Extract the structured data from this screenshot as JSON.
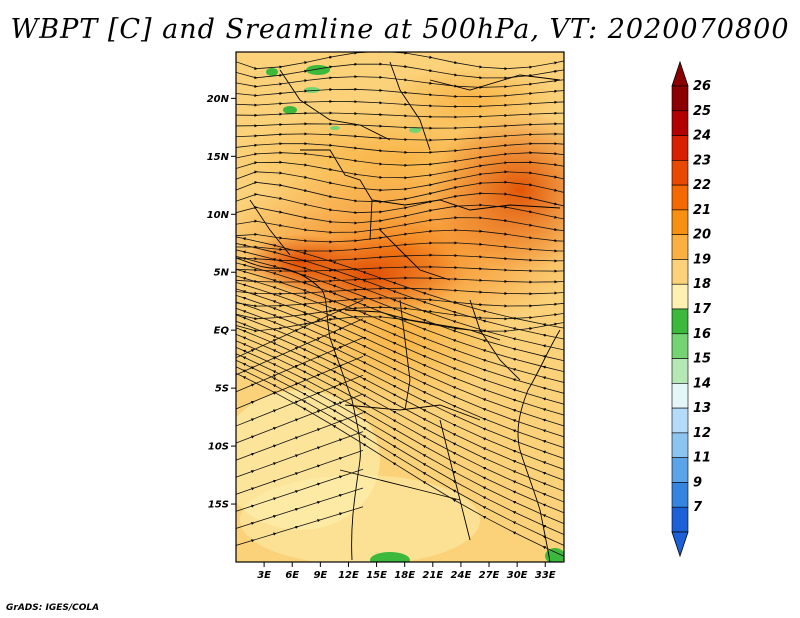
{
  "title": "WBPT [C] and Sreamline at 500hPa, VT: 2020070800",
  "credit": "GrADS: IGES/COLA",
  "map": {
    "lon_range": [
      0,
      35
    ],
    "lat_range": [
      -20,
      24
    ],
    "lat_ticks": [
      {
        "value": 20,
        "label": "20N"
      },
      {
        "value": 15,
        "label": "15N"
      },
      {
        "value": 10,
        "label": "10N"
      },
      {
        "value": 5,
        "label": "5N"
      },
      {
        "value": 0,
        "label": "EQ"
      },
      {
        "value": -5,
        "label": "5S"
      },
      {
        "value": -10,
        "label": "10S"
      },
      {
        "value": -15,
        "label": "15S"
      }
    ],
    "lon_ticks": [
      {
        "value": 3,
        "label": "3E"
      },
      {
        "value": 6,
        "label": "6E"
      },
      {
        "value": 9,
        "label": "9E"
      },
      {
        "value": 12,
        "label": "12E"
      },
      {
        "value": 15,
        "label": "15E"
      },
      {
        "value": 18,
        "label": "18E"
      },
      {
        "value": 21,
        "label": "21E"
      },
      {
        "value": 24,
        "label": "24E"
      },
      {
        "value": 27,
        "label": "27E"
      },
      {
        "value": 30,
        "label": "30E"
      },
      {
        "value": 33,
        "label": "33E"
      }
    ]
  },
  "colorbar": {
    "levels": [
      {
        "label": "26",
        "color": "#8b0000"
      },
      {
        "label": "25",
        "color": "#b00000"
      },
      {
        "label": "24",
        "color": "#d81f00"
      },
      {
        "label": "23",
        "color": "#e84800"
      },
      {
        "label": "22",
        "color": "#f46a00"
      },
      {
        "label": "21",
        "color": "#f78f10"
      },
      {
        "label": "20",
        "color": "#f9b040"
      },
      {
        "label": "19",
        "color": "#fbd27a"
      },
      {
        "label": "18",
        "color": "#fdf0b0"
      },
      {
        "label": "17",
        "color": "#3cb83c"
      },
      {
        "label": "16",
        "color": "#74d474"
      },
      {
        "label": "15",
        "color": "#b4e8b4"
      },
      {
        "label": "14",
        "color": "#e4f6f8"
      },
      {
        "label": "13",
        "color": "#b4dcf8"
      },
      {
        "label": "12",
        "color": "#8cc4f0"
      },
      {
        "label": "11",
        "color": "#5ca4e8"
      },
      {
        "label": "9",
        "color": "#3484e0"
      },
      {
        "label": "7",
        "color": "#1c60d8"
      }
    ],
    "top_color": "#8b0000",
    "bottom_color": "#1c60d8"
  }
}
